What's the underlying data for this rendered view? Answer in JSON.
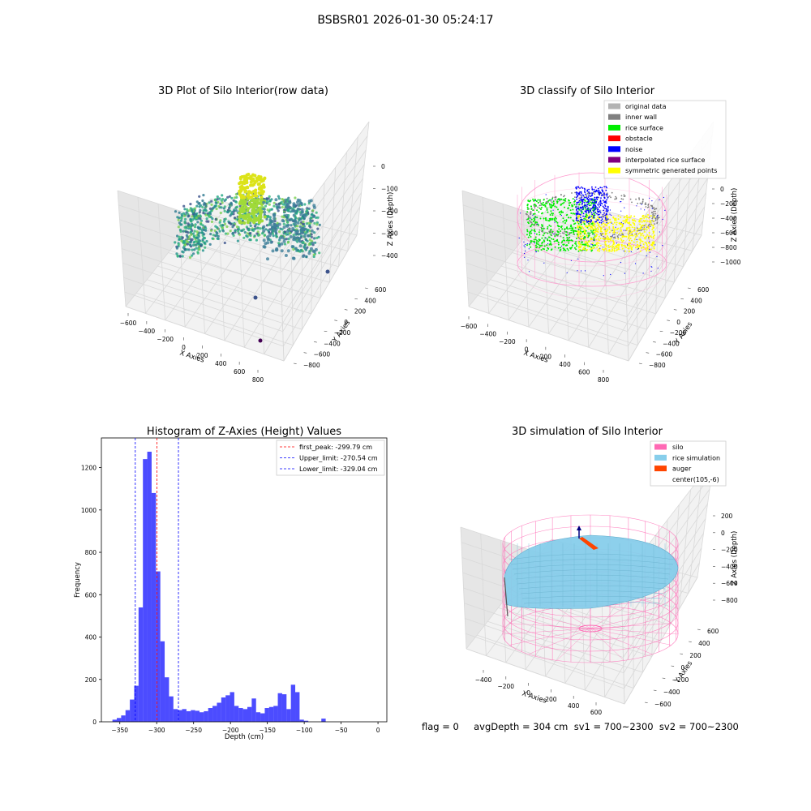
{
  "suptitle": "BSBSR01 2026-01-30 05:24:17",
  "panels": {
    "raw": {
      "title": "3D Plot of Silo Interior(row data)",
      "xlabel": "X Axies",
      "ylabel": "Y Axies",
      "zlabel": "Z Axies (Depth)",
      "xticks": [
        "−600",
        "−400",
        "−200",
        "0",
        "200",
        "400",
        "600",
        "800"
      ],
      "yticks": [
        "600",
        "400",
        "200",
        "0",
        "−200",
        "−400",
        "−600",
        "−800"
      ],
      "zticks": [
        "0",
        "−100",
        "−200",
        "−300",
        "−400"
      ]
    },
    "classify": {
      "title": "3D classify of Silo Interior",
      "xlabel": "X Axies",
      "ylabel": "Y Axies",
      "zlabel": "Z Axies (Depth)",
      "xticks": [
        "−600",
        "−400",
        "−200",
        "0",
        "200",
        "400",
        "600",
        "800"
      ],
      "yticks": [
        "600",
        "400",
        "200",
        "0",
        "−200",
        "−400",
        "−600",
        "−800"
      ],
      "zticks": [
        "0",
        "−200",
        "−400",
        "−600",
        "−800",
        "−1000"
      ],
      "legend": [
        {
          "label": "original data",
          "color": "#b3b3b3"
        },
        {
          "label": "inner wall",
          "color": "#808080"
        },
        {
          "label": "rice surface",
          "color": "#00ee00"
        },
        {
          "label": "obstacle",
          "color": "#ff0000"
        },
        {
          "label": "noise",
          "color": "#0000ff"
        },
        {
          "label": "interpolated rice surface",
          "color": "#800080"
        },
        {
          "label": "symmetric generated points",
          "color": "#ffff00"
        }
      ]
    },
    "simulation": {
      "title": "3D simulation of Silo Interior",
      "xlabel": "X Axies",
      "ylabel": "Y Axies",
      "zlabel": "Z Axies (Depth)",
      "xticks": [
        "−400",
        "−200",
        "0",
        "200",
        "400",
        "600"
      ],
      "yticks": [
        "600",
        "400",
        "200",
        "0",
        "−200",
        "−400",
        "−600"
      ],
      "zticks": [
        "200",
        "0",
        "−200",
        "−400",
        "−600",
        "−800"
      ],
      "legend": [
        {
          "label": "silo",
          "color": "#ff69b4"
        },
        {
          "label": "rice simulation",
          "color": "#87ceeb"
        },
        {
          "label": "auger",
          "color": "#ff4500"
        },
        {
          "label": "center(105,-6)",
          "color": "#ffffff"
        }
      ]
    }
  },
  "flag_text": "flag = 0     avgDepth = 304 cm  sv1 = 700~2300  sv2 = 700~2300",
  "chart_data": [
    {
      "type": "bar",
      "title": "Histogram of Z-Axies (Height) Values",
      "xlabel": "Depth (cm)",
      "ylabel": "Frequency",
      "xlim": [
        -375,
        12
      ],
      "ylim": [
        0,
        1340
      ],
      "bin_width": 5.9,
      "bin_start": -360.0,
      "values": [
        10,
        18,
        30,
        55,
        105,
        170,
        540,
        1240,
        1275,
        1080,
        710,
        380,
        210,
        120,
        60,
        55,
        60,
        50,
        55,
        52,
        45,
        50,
        65,
        75,
        90,
        115,
        125,
        140,
        75,
        65,
        60,
        70,
        110,
        45,
        40,
        65,
        70,
        75,
        135,
        130,
        60,
        175,
        140,
        10,
        5,
        0,
        0,
        0,
        15,
        0
      ],
      "xticks": [
        -350,
        -300,
        -250,
        -200,
        -150,
        -100,
        -50,
        0
      ],
      "yticks": [
        0,
        200,
        400,
        600,
        800,
        1000,
        1200
      ],
      "bar_color": "#0000ff",
      "lines": [
        {
          "label": "first_peak: -299.79 cm",
          "x": -299.79,
          "color": "#ff0000"
        },
        {
          "label": "Upper_limit: -270.54 cm",
          "x": -270.54,
          "color": "#0000ff"
        },
        {
          "label": "Lower_limit: -329.04 cm",
          "x": -329.04,
          "color": "#0000ff"
        }
      ],
      "legend_position": "top-right"
    }
  ]
}
